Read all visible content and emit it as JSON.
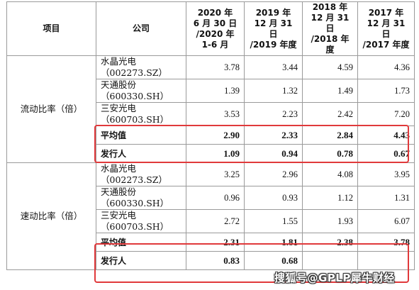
{
  "header": {
    "item": "项目",
    "company": "公司",
    "periods": [
      {
        "line1": "2020 年",
        "line2": "6 月 30 日",
        "line3": "/2020 年 1-6 月"
      },
      {
        "line1": "2019 年",
        "line2": "12 月 31 日",
        "line3": "/2019 年度"
      },
      {
        "line1": "2018 年",
        "line2": "12 月 31 日",
        "line3": "/2018 年度"
      },
      {
        "line1": "2017 年",
        "line2": "12 月 31 日",
        "line3": "/2017 年度"
      }
    ]
  },
  "sections": [
    {
      "metric": "流动比率（倍）",
      "peers": [
        {
          "name": "水晶光电",
          "code": "（002273.SZ）",
          "values": [
            "3.78",
            "3.44",
            "4.59",
            "4.36"
          ]
        },
        {
          "name": "天通股份",
          "code": "（600330.SH）",
          "values": [
            "1.39",
            "1.32",
            "1.49",
            "1.73"
          ]
        },
        {
          "name": "三安光电",
          "code": "（600703.SH）",
          "values": [
            "3.53",
            "2.23",
            "2.42",
            "7.20"
          ]
        }
      ],
      "average": {
        "label": "平均值",
        "values": [
          "2.90",
          "2.33",
          "2.84",
          "4.43"
        ]
      },
      "issuer": {
        "label": "发行人",
        "values": [
          "1.09",
          "0.94",
          "0.78",
          "0.67"
        ]
      }
    },
    {
      "metric": "速动比率（倍）",
      "peers": [
        {
          "name": "水晶光电",
          "code": "（002273.SZ）",
          "values": [
            "3.25",
            "2.96",
            "4.08",
            "3.95"
          ]
        },
        {
          "name": "天通股份",
          "code": "（600330.SH）",
          "values": [
            "0.96",
            "0.93",
            "1.12",
            "1.31"
          ]
        },
        {
          "name": "三安光电",
          "code": "（600703.SH）",
          "values": [
            "2.72",
            "1.55",
            "1.93",
            "6.07"
          ]
        }
      ],
      "average": {
        "label": "平均值",
        "values": [
          "2.31",
          "1.81",
          "2.38",
          "3.78"
        ]
      },
      "issuer": {
        "label": "发行人",
        "values": [
          "0.83",
          "0.68",
          "",
          ""
        ]
      }
    }
  ],
  "watermark": "搜狐号@GPLP犀牛财经",
  "colors": {
    "highlight_border": "#e0393b",
    "grid": "#9a9a9a"
  }
}
